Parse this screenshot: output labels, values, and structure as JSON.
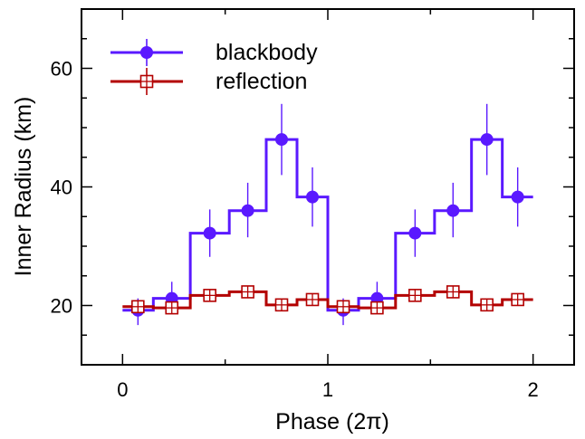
{
  "chart_data": {
    "type": "line",
    "xlabel": "Phase (2π)",
    "ylabel": "Inner Radius (km)",
    "xlim": [
      -0.2,
      2.2
    ],
    "ylim": [
      10,
      70
    ],
    "x_ticks": [
      0,
      1,
      2
    ],
    "y_ticks": [
      20,
      40,
      60
    ],
    "x_tick_labels": [
      "0",
      "1",
      "2"
    ],
    "y_tick_labels": [
      "20",
      "40",
      "60"
    ],
    "grid": false,
    "legend_position": "top-left",
    "bin_edges": [
      0,
      0.15,
      0.33,
      0.52,
      0.7,
      0.85,
      1.0,
      1.15,
      1.33,
      1.52,
      1.7,
      1.85,
      2.0
    ],
    "series": [
      {
        "name": "blackbody",
        "color": "#5a19ff",
        "marker": "filled-circle",
        "x": [
          0.075,
          0.24,
          0.425,
          0.61,
          0.775,
          0.925,
          1.075,
          1.24,
          1.425,
          1.61,
          1.775,
          1.925
        ],
        "y": [
          19.2,
          21.2,
          32.2,
          36.0,
          48.0,
          38.3,
          19.2,
          21.2,
          32.2,
          36.0,
          48.0,
          38.3
        ],
        "yerr_low": [
          2.5,
          2.5,
          4.0,
          4.5,
          6.0,
          5.0,
          2.5,
          2.5,
          4.0,
          4.5,
          6.0,
          5.0
        ],
        "yerr_high": [
          2.0,
          2.8,
          4.0,
          4.7,
          6.0,
          5.0,
          2.0,
          2.8,
          4.0,
          4.7,
          6.0,
          5.0
        ]
      },
      {
        "name": "reflection",
        "color": "#b30000",
        "marker": "open-square-plus",
        "x": [
          0.075,
          0.24,
          0.425,
          0.61,
          0.775,
          0.925,
          1.075,
          1.24,
          1.425,
          1.61,
          1.775,
          1.925
        ],
        "y": [
          19.8,
          19.6,
          21.7,
          22.3,
          20.1,
          21.0,
          19.8,
          19.6,
          21.7,
          22.3,
          20.1,
          21.0
        ],
        "yerr_low": [
          1.0,
          1.0,
          1.0,
          1.0,
          1.0,
          1.0,
          1.0,
          1.0,
          1.0,
          1.0,
          1.0,
          1.0
        ],
        "yerr_high": [
          1.0,
          1.0,
          1.0,
          1.0,
          1.0,
          1.0,
          1.0,
          1.0,
          1.0,
          1.0,
          1.0,
          1.0
        ]
      }
    ]
  }
}
